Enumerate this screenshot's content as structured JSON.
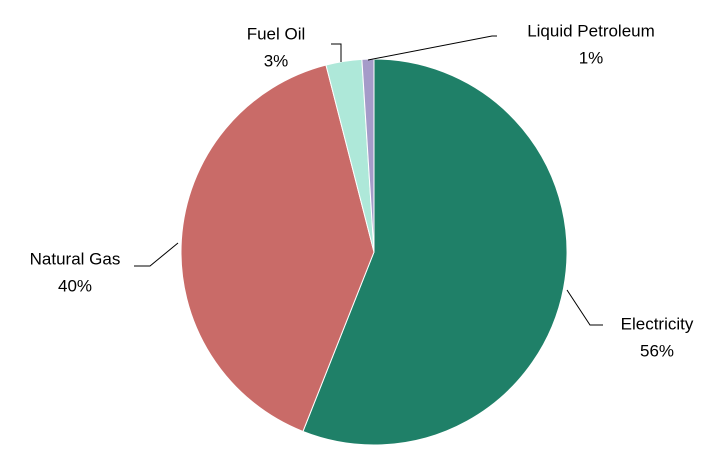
{
  "chart_data": {
    "type": "pie",
    "categories": [
      "Electricity",
      "Natural Gas",
      "Fuel Oil",
      "Liquid Petroleum"
    ],
    "values": [
      56,
      40,
      3,
      1
    ],
    "value_labels": [
      "56%",
      "40%",
      "3%",
      "1%"
    ],
    "colors": [
      "#1f8068",
      "#c96b68",
      "#aee8d9",
      "#a59bc9"
    ]
  }
}
